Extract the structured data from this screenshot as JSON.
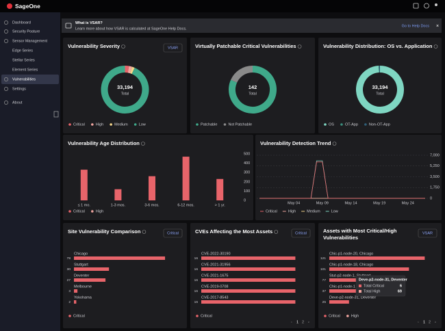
{
  "header": {
    "brand": "SageOne"
  },
  "sidebar": {
    "items": [
      "Dashboard",
      "Security Posture",
      "Sensor Management",
      "Edge Series",
      "Stellar Series",
      "Element Series",
      "Vulnerabilities",
      "Settings",
      "About"
    ]
  },
  "banner": {
    "title": "What is VSAR?",
    "text": "Learn more about how VSAR is calculated at SageOne Help Docs.",
    "link": "Go to Help Docs"
  },
  "chart_data": [
    {
      "type": "donut",
      "title": "Vulnerability Severity",
      "dropdown": "VSAR",
      "center_value": "33,194",
      "center_label": "Total",
      "categories": [
        "Critical",
        "High",
        "Medium",
        "Low"
      ],
      "values": [
        900,
        700,
        600,
        30994
      ],
      "colors": [
        "#e8646a",
        "#f2a6a0",
        "#f5d58a",
        "#3fa98a"
      ]
    },
    {
      "type": "donut",
      "title": "Virtually Patchable Critical Vulnerabilities",
      "center_value": "142",
      "center_label": "Total",
      "categories": [
        "Patchable",
        "Not Patchable"
      ],
      "values": [
        116,
        26
      ],
      "colors": [
        "#3fa98a",
        "#8a8a8a"
      ]
    },
    {
      "type": "donut",
      "title": "Vulnerability Distribution: OS vs. Application",
      "center_value": "33,194",
      "center_label": "Total",
      "categories": [
        "OS",
        "OT-App",
        "Non-OT-App"
      ],
      "values": [
        32900,
        100,
        194
      ],
      "colors": [
        "#7fd6c2",
        "#3b8f7e",
        "#2f5f78"
      ]
    },
    {
      "type": "bar",
      "title": "Vulnerability Age Distribution",
      "categories": [
        "≤ 1 mo.",
        "1-3 mos.",
        "3-6 mos.",
        "6-12 mos.",
        "> 1 yr."
      ],
      "series": [
        {
          "name": "Critical",
          "color": "#e8646a",
          "values": [
            330,
            120,
            260,
            470,
            230
          ]
        },
        {
          "name": "High",
          "color": "#f2a6a0",
          "values": [
            0,
            0,
            0,
            0,
            0
          ]
        }
      ],
      "ylim": [
        0,
        500
      ],
      "yticks": [
        0,
        100,
        200,
        300,
        400,
        500
      ]
    },
    {
      "type": "line",
      "title": "Vulnerability Detection Trend",
      "categories": [
        null,
        null,
        null,
        null,
        null,
        null,
        "May 04",
        null,
        null,
        null,
        null,
        "May 09",
        null,
        null,
        null,
        null,
        "May 14",
        null,
        null,
        null,
        null,
        "May 19",
        null,
        null,
        null,
        null,
        "May 24",
        null,
        null,
        null
      ],
      "series": [
        {
          "name": "Critical",
          "color": "#e8646a",
          "values": [
            0,
            0,
            0,
            0,
            0,
            0,
            0,
            0,
            0,
            0,
            5900,
            5900,
            0,
            0,
            0,
            0,
            0,
            0,
            0,
            0,
            0,
            0,
            0,
            0,
            0,
            0,
            0,
            0,
            0,
            0
          ]
        },
        {
          "name": "High",
          "color": "#f2a6a0",
          "values": [
            0,
            0,
            0,
            0,
            0,
            0,
            0,
            0,
            0,
            0,
            0,
            0,
            0,
            0,
            0,
            0,
            0,
            0,
            0,
            0,
            0,
            0,
            0,
            0,
            0,
            0,
            0,
            0,
            0,
            0
          ]
        },
        {
          "name": "Medium",
          "color": "#f5d58a",
          "values": [
            0,
            0,
            0,
            0,
            0,
            0,
            0,
            0,
            0,
            0,
            0,
            0,
            0,
            0,
            0,
            0,
            0,
            0,
            0,
            0,
            0,
            0,
            0,
            0,
            0,
            0,
            0,
            0,
            0,
            0
          ]
        },
        {
          "name": "Low",
          "color": "#7fd6c2",
          "values": [
            0,
            0,
            0,
            0,
            0,
            0,
            0,
            0,
            0,
            0,
            6100,
            6100,
            0,
            0,
            0,
            0,
            0,
            0,
            0,
            0,
            0,
            0,
            0,
            0,
            0,
            0,
            0,
            0,
            0,
            0
          ]
        }
      ],
      "ylim": [
        0,
        7000
      ],
      "yticks": [
        0,
        {
          "value": 1750,
          "label": "1,750"
        },
        {
          "value": 3500,
          "label": "3,500"
        },
        {
          "value": 5250,
          "label": "5,250"
        },
        {
          "value": 7000,
          "label": "7,000"
        }
      ],
      "grid": true
    },
    {
      "type": "hbar",
      "title": "Site Vulnerability Comparison",
      "dropdown": "Critical",
      "categories": [
        "Chicago",
        "Stuttgart",
        "Deventer",
        "Melbourne",
        "Yokohama"
      ],
      "series": [
        {
          "name": "Critical",
          "color": "#e8646a",
          "values": [
            78,
            30,
            27,
            3,
            2
          ]
        }
      ],
      "xlim": [
        0,
        85
      ]
    },
    {
      "type": "hbar",
      "title": "CVEs Affecting the Most Assets",
      "dropdown": "Critical",
      "categories": [
        "CVE-2022-30190",
        "CVE-2021-31956",
        "CVE-2021-1675",
        "CVE-2019-0708",
        "CVE-2017-8543"
      ],
      "series": [
        {
          "name": "Critical",
          "color": "#e8646a",
          "values": [
            16,
            16,
            16,
            16,
            16
          ]
        }
      ],
      "xlim": [
        0,
        17
      ],
      "pages": [
        "1",
        "2"
      ]
    },
    {
      "type": "hbar",
      "title": "Assets with Most Critical/High Vulnerabilities",
      "dropdown": "VSAR",
      "categories": [
        "Chic-p1-node-20, Chicago",
        "Chic-p1-node-18, Chicago",
        "Stut-p2-node-1, Stuttgart",
        "Chic-p1-node-1",
        "Deve-p2-node-31, Deventer"
      ],
      "series": [
        {
          "name": "VSAR",
          "color": "#e8646a",
          "values": [
            121,
            101,
            77,
            37,
            25
          ]
        }
      ],
      "xlim": [
        0,
        125
      ],
      "legend": [
        {
          "name": "Critical",
          "color": "#e8646a"
        },
        {
          "name": "High",
          "color": "#f2a6a0"
        }
      ],
      "tooltip": {
        "title": "Deve-p2-node-31, Deventer",
        "rows": [
          {
            "label": "Total Critical",
            "value": 6
          },
          {
            "label": "Total High",
            "value": 69
          }
        ]
      },
      "pages": [
        "1",
        "2"
      ]
    }
  ]
}
